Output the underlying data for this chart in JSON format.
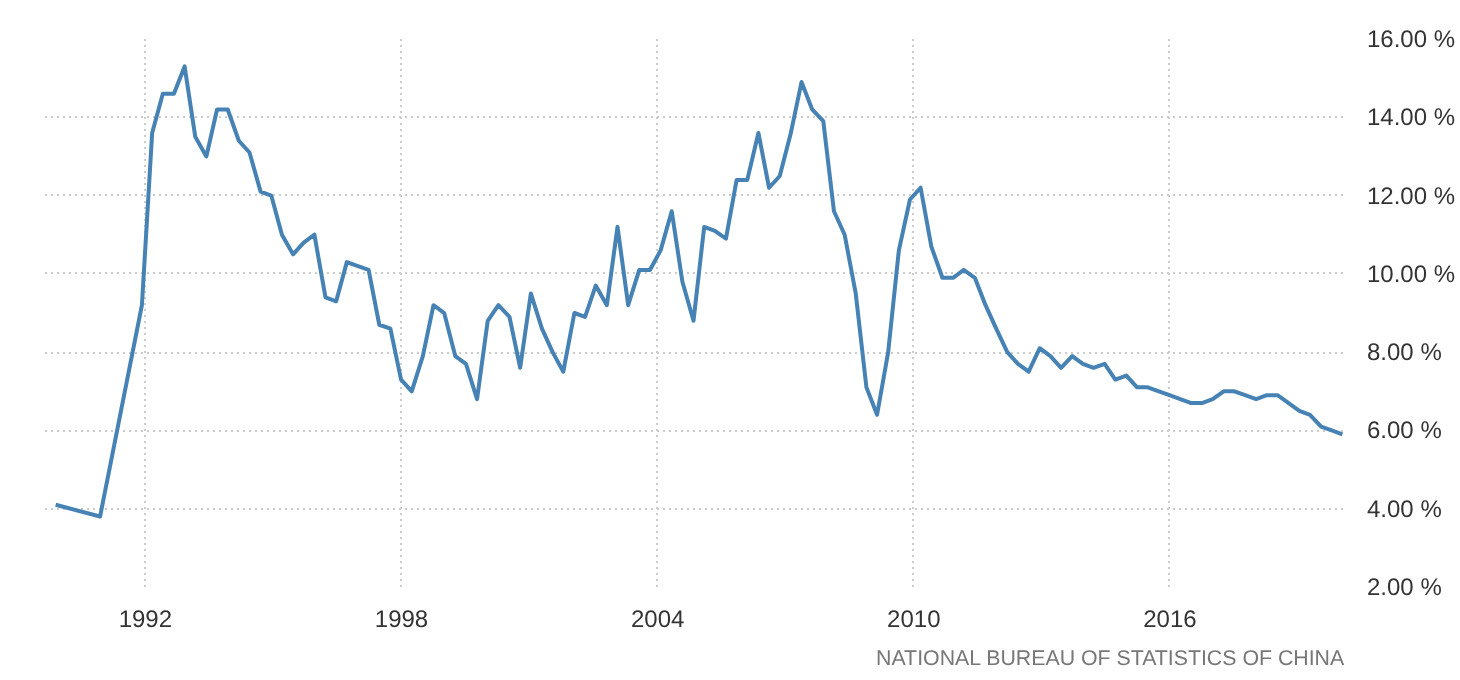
{
  "chart_data": {
    "type": "line",
    "x": [
      1989.9,
      1990.94,
      1991.92,
      1992.16,
      1992.41,
      1992.67,
      1992.92,
      1993.17,
      1993.43,
      1993.68,
      1993.93,
      1994.19,
      1994.44,
      1994.7,
      1994.95,
      1995.2,
      1995.46,
      1995.71,
      1995.96,
      1996.22,
      1996.47,
      1996.72,
      1996.98,
      1997.23,
      1997.48,
      1997.74,
      1997.99,
      1998.24,
      1998.5,
      1998.75,
      1999.0,
      1999.26,
      1999.51,
      1999.77,
      2000.02,
      2000.27,
      2000.53,
      2000.78,
      2001.03,
      2001.29,
      2001.54,
      2001.79,
      2002.05,
      2002.3,
      2002.55,
      2002.81,
      2003.06,
      2003.31,
      2003.57,
      2003.82,
      2004.07,
      2004.33,
      2004.58,
      2004.84,
      2005.09,
      2005.34,
      2005.6,
      2005.85,
      2006.1,
      2006.36,
      2006.61,
      2006.86,
      2007.12,
      2007.37,
      2007.62,
      2007.88,
      2008.13,
      2008.38,
      2008.64,
      2008.89,
      2009.14,
      2009.4,
      2009.65,
      2009.91,
      2010.16,
      2010.41,
      2010.67,
      2010.92,
      2011.17,
      2011.43,
      2011.68,
      2011.93,
      2012.19,
      2012.44,
      2012.69,
      2012.95,
      2013.2,
      2013.45,
      2013.71,
      2013.96,
      2014.21,
      2014.47,
      2014.72,
      2014.98,
      2015.23,
      2015.48,
      2015.74,
      2015.99,
      2016.24,
      2016.5,
      2016.75,
      2017.0,
      2017.26,
      2017.51,
      2017.76,
      2018.02,
      2018.27,
      2018.52,
      2018.78,
      2019.03,
      2019.28,
      2019.54,
      2019.79,
      2020.04
    ],
    "series": [
      {
        "color": "#4682b4",
        "values": [
          4.1,
          3.8,
          9.2,
          13.6,
          14.6,
          14.6,
          15.3,
          13.5,
          13.0,
          14.2,
          14.2,
          13.4,
          13.1,
          12.1,
          12.0,
          11.0,
          10.5,
          10.8,
          11.0,
          9.4,
          9.3,
          10.3,
          10.2,
          10.1,
          8.7,
          8.6,
          7.3,
          7.0,
          7.9,
          9.2,
          9.0,
          7.9,
          7.7,
          6.8,
          8.8,
          9.2,
          8.9,
          7.6,
          9.5,
          8.6,
          8.0,
          7.5,
          9.0,
          8.9,
          9.7,
          9.2,
          11.2,
          9.2,
          10.1,
          10.1,
          10.6,
          11.6,
          9.8,
          8.8,
          11.2,
          11.1,
          10.9,
          12.4,
          12.4,
          13.6,
          12.2,
          12.5,
          13.6,
          14.9,
          14.2,
          13.9,
          11.6,
          11.0,
          9.5,
          7.1,
          6.4,
          8.0,
          10.6,
          11.9,
          12.2,
          10.7,
          9.9,
          9.9,
          10.1,
          9.9,
          9.2,
          8.6,
          8.0,
          7.7,
          7.5,
          8.1,
          7.9,
          7.6,
          7.9,
          7.7,
          7.6,
          7.7,
          7.3,
          7.4,
          7.1,
          7.1,
          7.0,
          6.9,
          6.8,
          6.7,
          6.7,
          6.8,
          7.0,
          7.0,
          6.9,
          6.8,
          6.9,
          6.9,
          6.7,
          6.5,
          6.4,
          6.1,
          6.0,
          5.9
        ]
      }
    ],
    "xlim": [
      1989.65,
      2020.1
    ],
    "ylim": [
      2,
      16
    ],
    "xticks": [
      1992,
      1998,
      2004,
      2010,
      2016
    ],
    "yticks": [
      {
        "value": 2,
        "label": "2.00 %"
      },
      {
        "value": 4,
        "label": "4.00 %"
      },
      {
        "value": 6,
        "label": "6.00 %"
      },
      {
        "value": 8,
        "label": "8.00 %"
      },
      {
        "value": 10,
        "label": "10.00 %"
      },
      {
        "value": 12,
        "label": "12.00 %"
      },
      {
        "value": 14,
        "label": "14.00 %"
      },
      {
        "value": 16,
        "label": "16.00 %"
      }
    ],
    "grid": true,
    "annotations": [
      "NATIONAL BUREAU OF STATISTICS OF CHINA"
    ]
  }
}
